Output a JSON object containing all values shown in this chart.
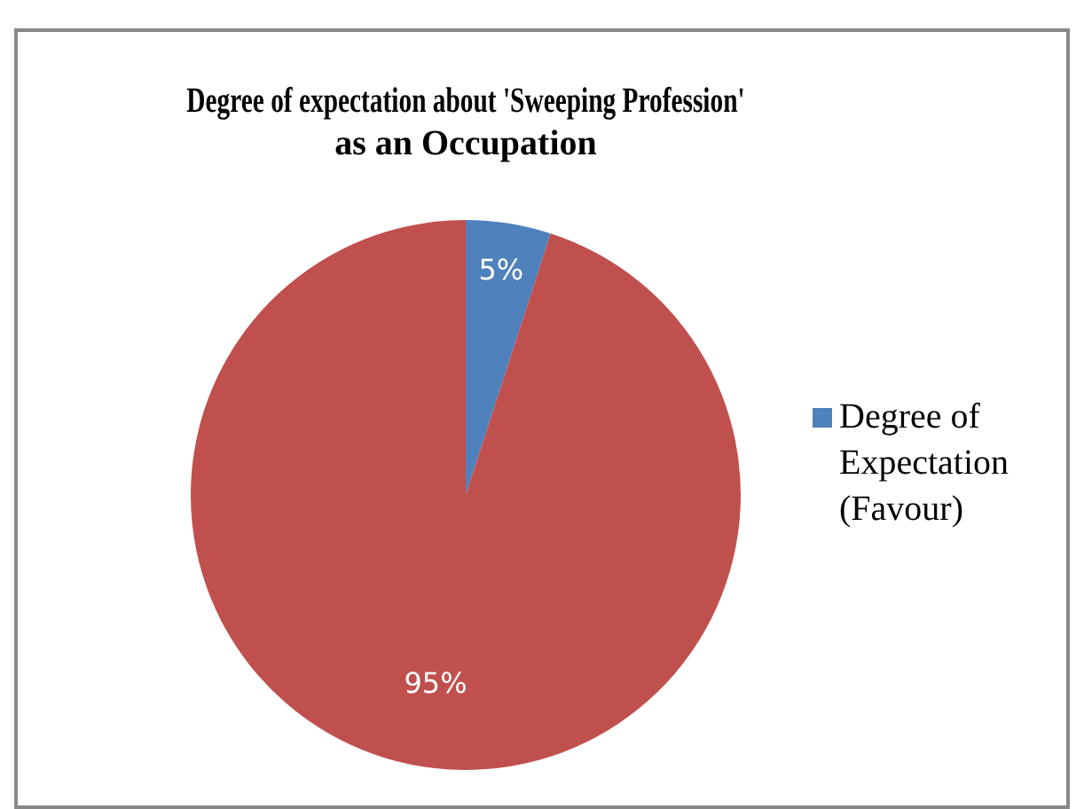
{
  "chart_data": {
    "type": "pie",
    "title": "Degree of expectation about 'Sweeping Profession'\nas an Occupation",
    "categories": [
      "Degree of Expectation (Favour)",
      null
    ],
    "values": [
      5,
      95
    ],
    "colors": [
      "#4f81bd",
      "#c0504d"
    ],
    "value_labels": [
      "5%",
      "95%"
    ],
    "legend": "right"
  }
}
